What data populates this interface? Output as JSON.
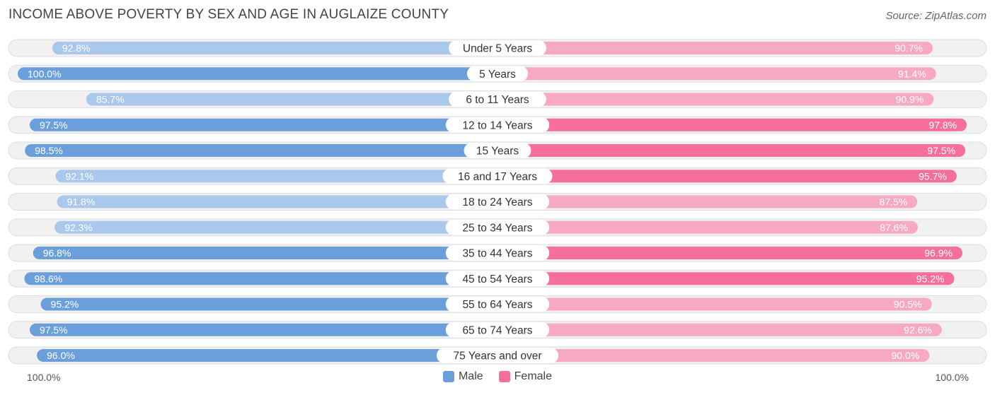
{
  "header": {
    "title": "INCOME ABOVE POVERTY BY SEX AND AGE IN AUGLAIZE COUNTY",
    "source": "Source: ZipAtlas.com"
  },
  "axis": {
    "left_label": "100.0%",
    "right_label": "100.0%"
  },
  "legend": {
    "male_label": "Male",
    "female_label": "Female"
  },
  "colors": {
    "male_dark": "#6a9fdb",
    "male_light": "#a9c8ec",
    "female_dark": "#f56f9a",
    "female_light": "#f8a9c2",
    "row_bg": "#f1f1f1",
    "row_border": "#dedede"
  },
  "chart_data": {
    "type": "bar",
    "orientation": "horizontal-diverging",
    "title": "INCOME ABOVE POVERTY BY SEX AND AGE IN AUGLAIZE COUNTY",
    "xlim": [
      0,
      100
    ],
    "categories": [
      "Under 5 Years",
      "5 Years",
      "6 to 11 Years",
      "12 to 14 Years",
      "15 Years",
      "16 and 17 Years",
      "18 to 24 Years",
      "25 to 34 Years",
      "35 to 44 Years",
      "45 to 54 Years",
      "55 to 64 Years",
      "65 to 74 Years",
      "75 Years and over"
    ],
    "series": [
      {
        "name": "Male",
        "values": [
          92.8,
          100.0,
          85.7,
          97.5,
          98.5,
          92.1,
          91.8,
          92.3,
          96.8,
          98.6,
          95.2,
          97.5,
          96.0
        ],
        "labels": [
          "92.8%",
          "100.0%",
          "85.7%",
          "97.5%",
          "98.5%",
          "92.1%",
          "91.8%",
          "92.3%",
          "96.8%",
          "98.6%",
          "95.2%",
          "97.5%",
          "96.0%"
        ]
      },
      {
        "name": "Female",
        "values": [
          90.7,
          91.4,
          90.9,
          97.8,
          97.5,
          95.7,
          87.5,
          87.6,
          96.9,
          95.2,
          90.5,
          92.6,
          90.0
        ],
        "labels": [
          "90.7%",
          "91.4%",
          "90.9%",
          "97.8%",
          "97.5%",
          "95.7%",
          "87.5%",
          "87.6%",
          "96.9%",
          "95.2%",
          "90.5%",
          "92.6%",
          "90.0%"
        ]
      }
    ],
    "legend_position": "bottom-center"
  }
}
